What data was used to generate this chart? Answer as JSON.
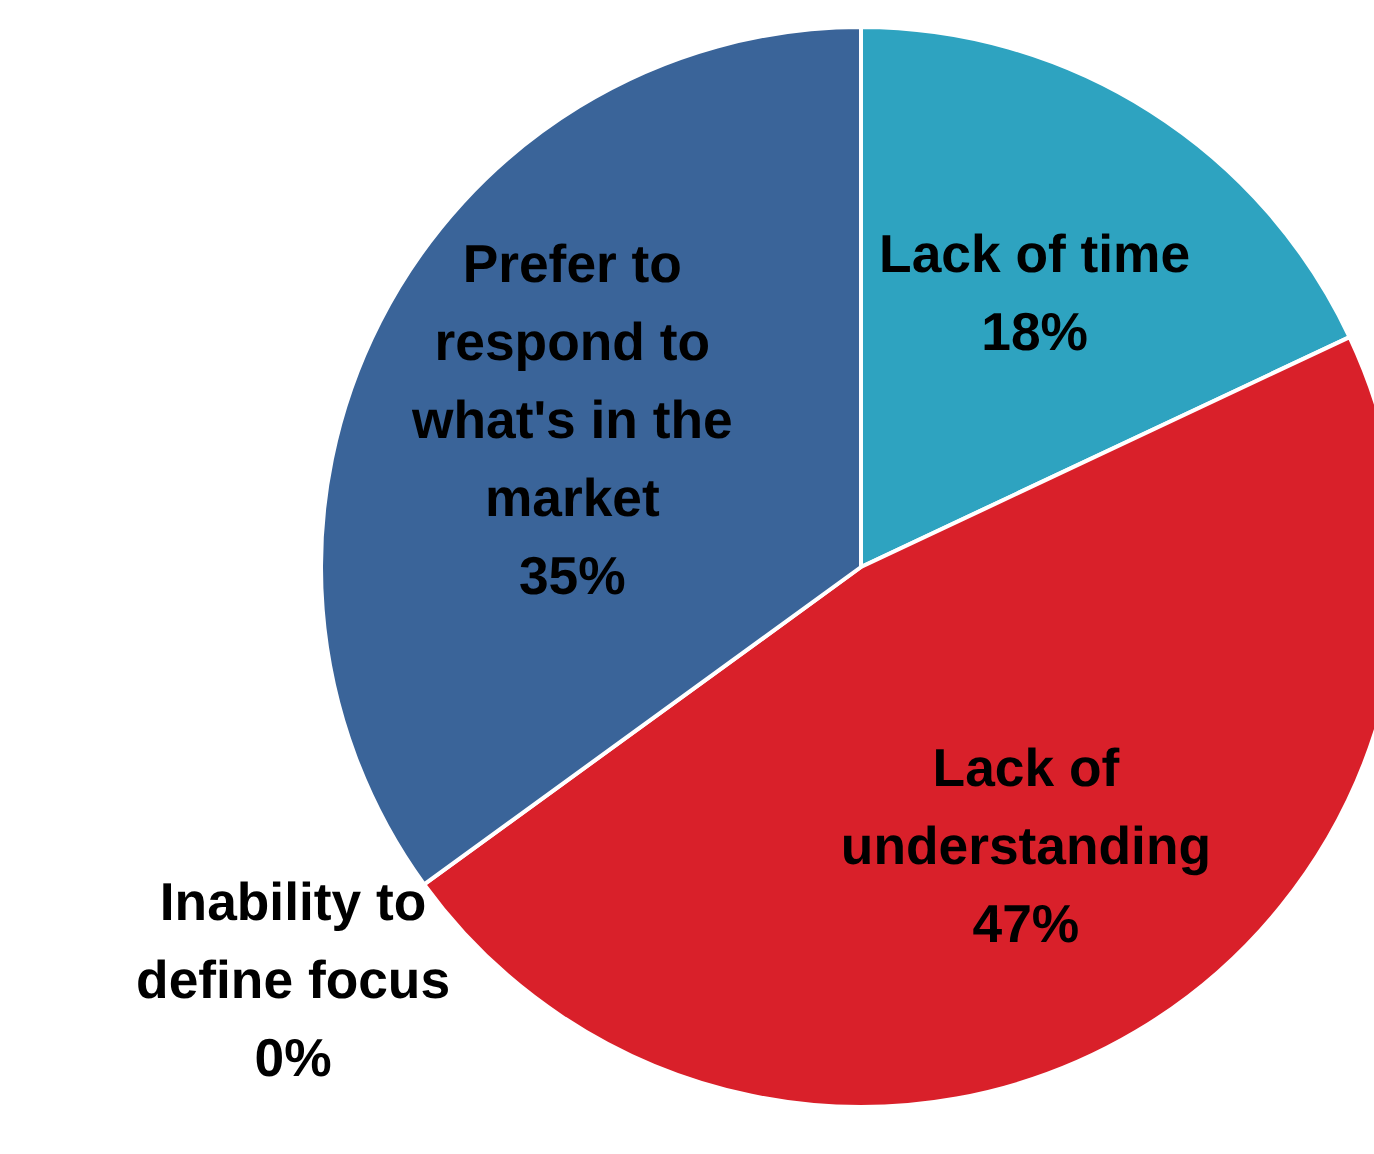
{
  "chart_data": {
    "type": "pie",
    "categories": [
      "Lack of time",
      "Lack of understanding",
      "Inability to define focus",
      "Prefer to respond to what's in the market"
    ],
    "values": [
      18,
      47,
      0,
      35
    ],
    "value_labels": [
      "18%",
      "47%",
      "0%",
      "35%"
    ],
    "colors": [
      "#2ea3c0",
      "#d9202a",
      "#7f7f7f",
      "#3a6499"
    ]
  }
}
